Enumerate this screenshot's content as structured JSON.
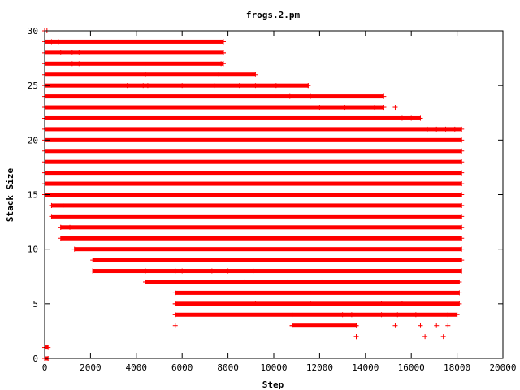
{
  "chart_data": {
    "type": "scatter",
    "title": "frogs.2.pm",
    "xlabel": "Step",
    "ylabel": "Stack Size",
    "xlim": [
      0,
      20000
    ],
    "ylim": [
      0,
      30
    ],
    "x_ticks": [
      "0",
      "2000",
      "4000",
      "6000",
      "8000",
      "10000",
      "12000",
      "14000",
      "16000",
      "18000",
      "20000"
    ],
    "y_ticks": [
      "0",
      "5",
      "10",
      "15",
      "20",
      "25",
      "30"
    ],
    "grid": false,
    "legend": "none",
    "marker": "plus",
    "color": "#ff0000",
    "x_max_data": 18200,
    "bands": [
      {
        "y": 0,
        "x": [
          0,
          150
        ]
      },
      {
        "y": 1,
        "x": [
          0,
          150
        ]
      },
      {
        "y": 2,
        "x": [
          13600,
          13600
        ]
      },
      {
        "y": 3,
        "x": [
          10800,
          13600
        ]
      },
      {
        "y": 4,
        "x": [
          5700,
          18000
        ]
      },
      {
        "y": 5,
        "x": [
          5700,
          18100
        ]
      },
      {
        "y": 6,
        "x": [
          5700,
          18100
        ]
      },
      {
        "y": 7,
        "x": [
          4400,
          18100
        ]
      },
      {
        "y": 8,
        "x": [
          2100,
          18200
        ]
      },
      {
        "y": 9,
        "x": [
          2100,
          18200
        ]
      },
      {
        "y": 10,
        "x": [
          1300,
          18200
        ]
      },
      {
        "y": 11,
        "x": [
          700,
          18200
        ]
      },
      {
        "y": 12,
        "x": [
          700,
          18200
        ]
      },
      {
        "y": 13,
        "x": [
          300,
          18200
        ]
      },
      {
        "y": 14,
        "x": [
          300,
          18200
        ]
      },
      {
        "y": 15,
        "x": [
          0,
          18200
        ]
      },
      {
        "y": 16,
        "x": [
          0,
          18200
        ]
      },
      {
        "y": 17,
        "x": [
          0,
          18200
        ]
      },
      {
        "y": 18,
        "x": [
          0,
          18200
        ]
      },
      {
        "y": 19,
        "x": [
          0,
          18200
        ]
      },
      {
        "y": 20,
        "x": [
          0,
          18200
        ]
      },
      {
        "y": 21,
        "x": [
          0,
          18200
        ]
      },
      {
        "y": 22,
        "x": [
          0,
          16400
        ]
      },
      {
        "y": 23,
        "x": [
          0,
          14800
        ]
      },
      {
        "y": 24,
        "x": [
          0,
          14800
        ]
      },
      {
        "y": 25,
        "x": [
          0,
          11500
        ]
      },
      {
        "y": 26,
        "x": [
          0,
          9200
        ]
      },
      {
        "y": 27,
        "x": [
          0,
          7800
        ]
      },
      {
        "y": 28,
        "x": [
          0,
          7800
        ]
      },
      {
        "y": 29,
        "x": [
          0,
          7800
        ]
      },
      {
        "y": 30,
        "x": [
          0,
          100
        ]
      }
    ],
    "points": [
      [
        13600,
        2
      ],
      [
        16600,
        2
      ],
      [
        17400,
        2
      ],
      [
        5700,
        3
      ],
      [
        10800,
        3
      ],
      [
        13600,
        3
      ],
      [
        15300,
        3
      ],
      [
        16400,
        3
      ],
      [
        17100,
        3
      ],
      [
        17600,
        3
      ],
      [
        5700,
        4
      ],
      [
        10800,
        4
      ],
      [
        13000,
        4
      ],
      [
        13400,
        4
      ],
      [
        14700,
        4
      ],
      [
        15400,
        4
      ],
      [
        16200,
        4
      ],
      [
        17600,
        4
      ],
      [
        5700,
        5
      ],
      [
        9200,
        5
      ],
      [
        11600,
        5
      ],
      [
        14700,
        5
      ],
      [
        15600,
        5
      ],
      [
        4400,
        7
      ],
      [
        6000,
        7
      ],
      [
        7300,
        7
      ],
      [
        8700,
        7
      ],
      [
        10600,
        7
      ],
      [
        10800,
        7
      ],
      [
        12100,
        7
      ],
      [
        2100,
        8
      ],
      [
        4400,
        8
      ],
      [
        5700,
        8
      ],
      [
        6000,
        8
      ],
      [
        7300,
        8
      ],
      [
        8000,
        8
      ],
      [
        9100,
        8
      ],
      [
        700,
        12
      ],
      [
        1100,
        12
      ],
      [
        300,
        14
      ],
      [
        800,
        14
      ],
      [
        3600,
        25
      ],
      [
        4300,
        25
      ],
      [
        4500,
        25
      ],
      [
        6000,
        25
      ],
      [
        7400,
        25
      ],
      [
        8500,
        25
      ],
      [
        9200,
        25
      ],
      [
        10100,
        25
      ],
      [
        11500,
        25
      ],
      [
        4400,
        26
      ],
      [
        7600,
        26
      ],
      [
        1200,
        27
      ],
      [
        1500,
        27
      ],
      [
        7700,
        27
      ],
      [
        700,
        28
      ],
      [
        1200,
        28
      ],
      [
        1500,
        28
      ],
      [
        7800,
        28
      ],
      [
        300,
        29
      ],
      [
        600,
        29
      ],
      [
        7800,
        29
      ],
      [
        12000,
        23
      ],
      [
        12500,
        23
      ],
      [
        13100,
        23
      ],
      [
        14400,
        23
      ],
      [
        14800,
        23
      ],
      [
        15300,
        23
      ],
      [
        10700,
        24
      ],
      [
        11600,
        24
      ],
      [
        12500,
        24
      ],
      [
        15600,
        22
      ],
      [
        16000,
        22
      ],
      [
        16400,
        22
      ],
      [
        16700,
        21
      ],
      [
        17100,
        21
      ],
      [
        17500,
        21
      ],
      [
        17900,
        21
      ]
    ]
  }
}
